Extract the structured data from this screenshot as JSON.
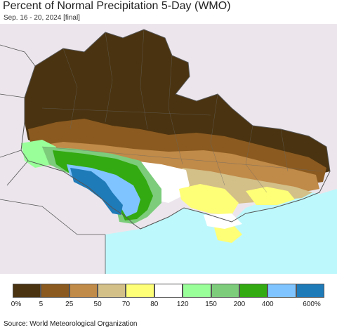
{
  "title": "Percent of Normal Precipitation 5-Day (WMO)",
  "subtitle": "Sep. 16 - 20, 2024 [final]",
  "source": "Source: World Meteorological Organization",
  "legend": {
    "colors": [
      "#4a3310",
      "#8a5a20",
      "#c08a48",
      "#d3bf88",
      "#ffff77",
      "#ffffff",
      "#99ff99",
      "#7ccc7c",
      "#33aa11",
      "#80c4ff",
      "#1f7ab8"
    ],
    "ticks": [
      "0%",
      "5",
      "25",
      "50",
      "70",
      "80",
      "120",
      "150",
      "200",
      "400",
      "600%"
    ]
  },
  "map_colors": {
    "land_outside": "#ece6ec",
    "sea": "#bdf8fc",
    "border": "#555555"
  }
}
